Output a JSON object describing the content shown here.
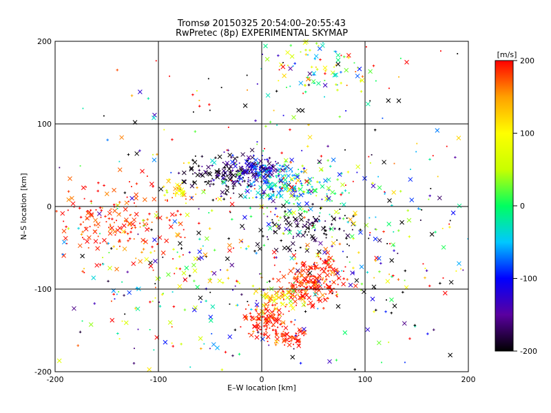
{
  "chart_data": {
    "type": "scatter",
    "title": "Tromsø 20150325 20:54:00–20:55:43",
    "subtitle": "RwPretec (8p) EXPERIMENTAL SKYMAP",
    "xlabel": "E–W location [km]",
    "ylabel": "N–S location [km]",
    "xlim": [
      -200,
      200
    ],
    "ylim": [
      -200,
      200
    ],
    "xticks": [
      -200,
      -100,
      0,
      100,
      200
    ],
    "yticks": [
      -200,
      -100,
      0,
      100,
      200
    ],
    "grid": true,
    "markers": [
      "x",
      "+",
      "dot"
    ],
    "colorbar": {
      "label": "[m/s]",
      "min": -200,
      "max": 200,
      "ticks": [
        -200,
        -100,
        0,
        100,
        200
      ],
      "colormap": [
        "#000000",
        "#5a00a0",
        "#0000ff",
        "#00c8ff",
        "#00ff60",
        "#c8ff00",
        "#ffff00",
        "#ffa000",
        "#ff0000"
      ]
    },
    "clusters": [
      {
        "cx": -30,
        "cy": 38,
        "sx": 22,
        "sy": 12,
        "n": 170,
        "v": -185,
        "dv": 25
      },
      {
        "cx": -5,
        "cy": 45,
        "sx": 12,
        "sy": 8,
        "n": 120,
        "v": -120,
        "dv": 30
      },
      {
        "cx": 15,
        "cy": 30,
        "sx": 18,
        "sy": 12,
        "n": 90,
        "v": -40,
        "dv": 40
      },
      {
        "cx": 40,
        "cy": 15,
        "sx": 30,
        "sy": 18,
        "n": 120,
        "v": 0,
        "dv": 60
      },
      {
        "cx": 45,
        "cy": -25,
        "sx": 25,
        "sy": 12,
        "n": 90,
        "v": -190,
        "dv": 20
      },
      {
        "cx": 45,
        "cy": -95,
        "sx": 15,
        "sy": 12,
        "n": 170,
        "v": 190,
        "dv": 15
      },
      {
        "cx": 60,
        "cy": -75,
        "sx": 10,
        "sy": 10,
        "n": 60,
        "v": 185,
        "dv": 20
      },
      {
        "cx": 5,
        "cy": -140,
        "sx": 10,
        "sy": 12,
        "n": 120,
        "v": 190,
        "dv": 15
      },
      {
        "cx": 25,
        "cy": -160,
        "sx": 8,
        "sy": 6,
        "n": 40,
        "v": 190,
        "dv": 15
      },
      {
        "cx": 15,
        "cy": -110,
        "sx": 12,
        "sy": 10,
        "n": 60,
        "v": 100,
        "dv": 40
      },
      {
        "cx": -140,
        "cy": -20,
        "sx": 35,
        "sy": 22,
        "n": 180,
        "v": 190,
        "dv": 20
      },
      {
        "cx": -80,
        "cy": 18,
        "sx": 8,
        "sy": 6,
        "n": 30,
        "v": 120,
        "dv": 40
      },
      {
        "cx": 60,
        "cy": 170,
        "sx": 25,
        "sy": 20,
        "n": 90,
        "v": 30,
        "dv": 90
      },
      {
        "cx": 100,
        "cy": -50,
        "sx": 60,
        "sy": 50,
        "n": 160,
        "v": -40,
        "dv": 160
      },
      {
        "cx": -100,
        "cy": -100,
        "sx": 60,
        "sy": 50,
        "n": 130,
        "v": 0,
        "dv": 150
      },
      {
        "cx": 0,
        "cy": 0,
        "sx": 110,
        "sy": 110,
        "n": 360,
        "v": 0,
        "dv": 190
      }
    ]
  }
}
